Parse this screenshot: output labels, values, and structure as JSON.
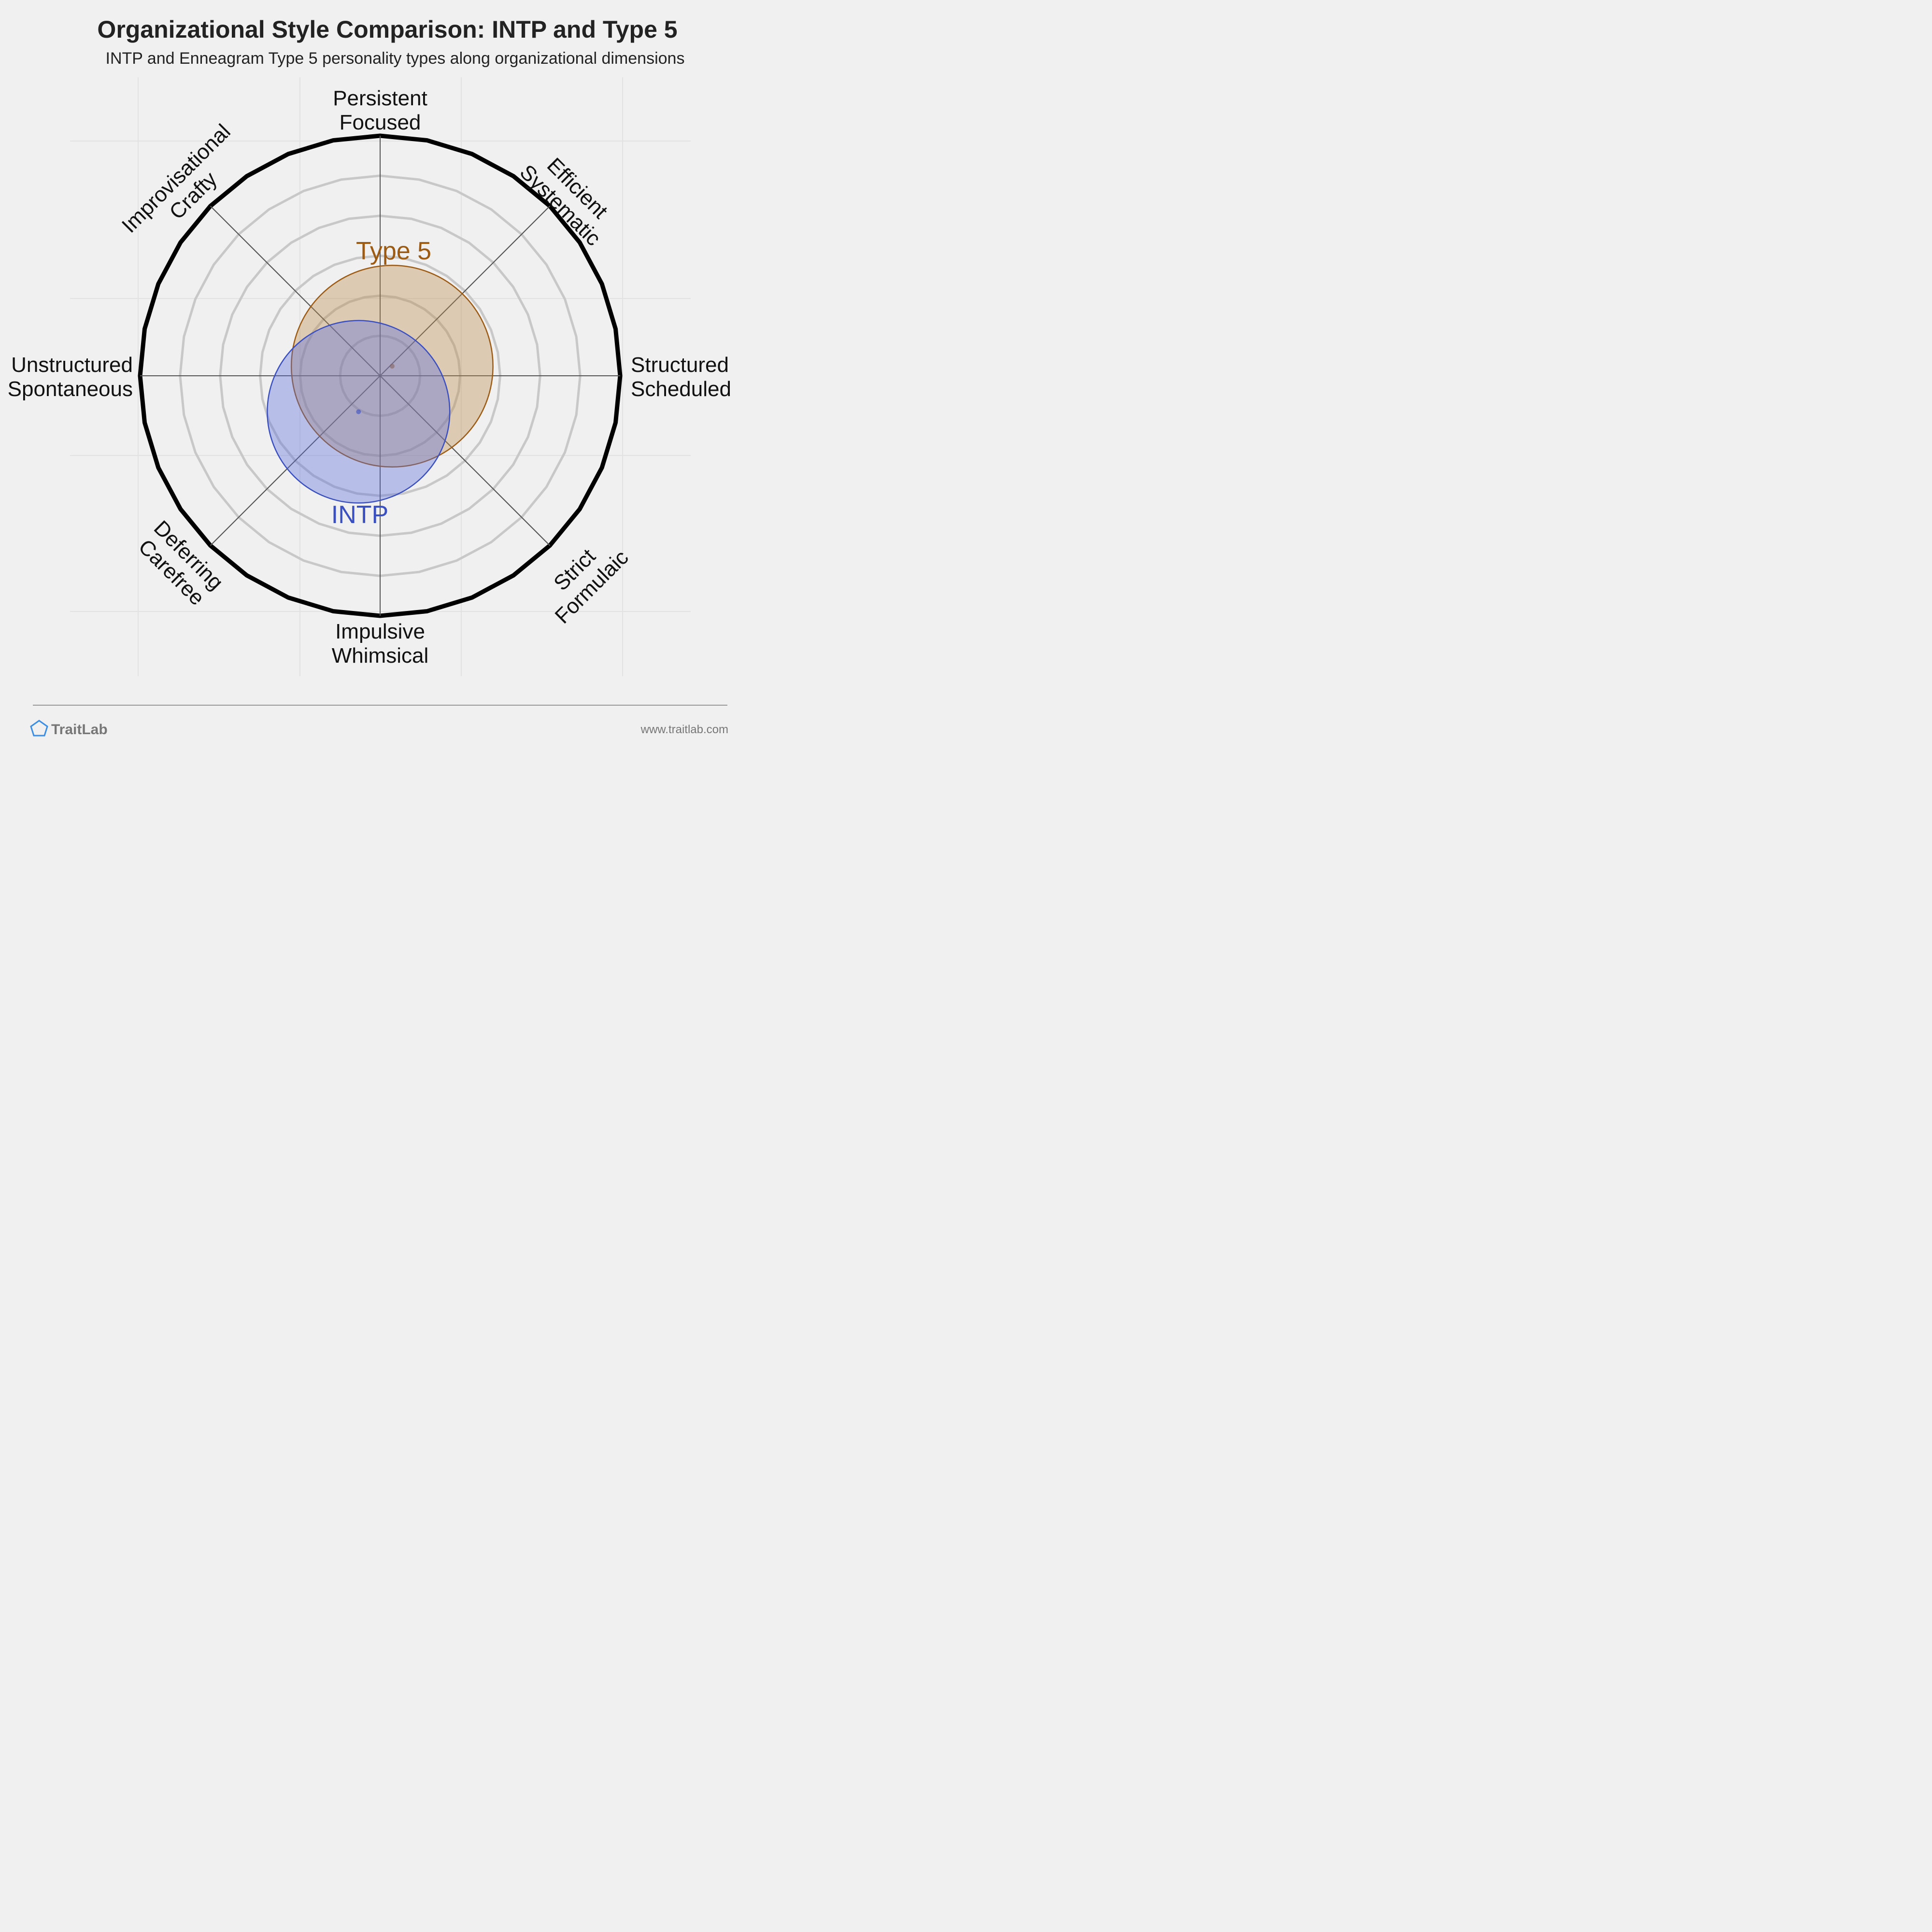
{
  "title": "Organizational Style Comparison: INTP and Type 5",
  "subtitle": "INTP and Enneagram Type 5 personality types along organizational dimensions",
  "footer": {
    "brand": "TraitLab",
    "url": "www.traitlab.com",
    "logo_icon": "pentagon-icon"
  },
  "colors": {
    "background": "#f0f0f0",
    "outer_ring": "#000000",
    "inner_rings": "#c8c8c8",
    "axes": "#555555",
    "intp": "#3a4fc0",
    "type5": "#9c5a12"
  },
  "chart_data": {
    "type": "radar-bubble",
    "axes": [
      {
        "label": [
          "Persistent",
          "Focused"
        ]
      },
      {
        "label": [
          "Efficient",
          "Systematic"
        ]
      },
      {
        "label": [
          "Structured",
          "Scheduled"
        ]
      },
      {
        "label": [
          "Strict",
          "Formulaic"
        ]
      },
      {
        "label": [
          "Impulsive",
          "Whimsical"
        ]
      },
      {
        "label": [
          "Deferring",
          "Carefree"
        ]
      },
      {
        "label": [
          "Unstructured",
          "Spontaneous"
        ]
      },
      {
        "label": [
          "Improvisational",
          "Crafty"
        ]
      }
    ],
    "rings": 6,
    "series": [
      {
        "name": "Type 5",
        "center": {
          "x": 0.05,
          "y": 0.04
        },
        "radius": 0.42,
        "color": "#9c5a12",
        "fill": "rgba(190,140,80,0.38)"
      },
      {
        "name": "INTP",
        "center": {
          "x": -0.09,
          "y": -0.15
        },
        "radius": 0.38,
        "color": "#3a4fc0",
        "fill": "rgba(90,110,220,0.38)"
      }
    ]
  }
}
